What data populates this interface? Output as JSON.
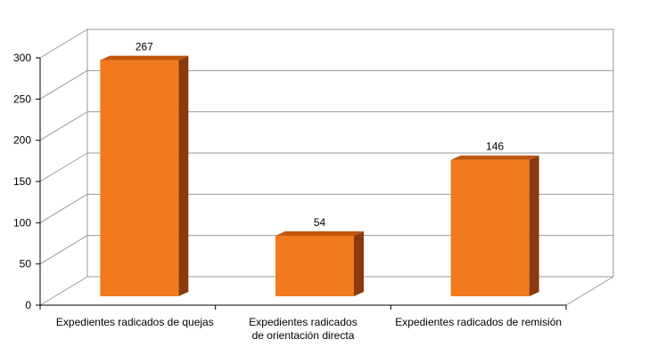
{
  "chart_data": {
    "type": "bar",
    "title": "",
    "xlabel": "",
    "ylabel": "",
    "categories": [
      "Expedientes radicados de quejas",
      "Expedientes radicados de orientación directa",
      "Expedientes radicados de remisión"
    ],
    "category_lines": [
      [
        "Expedientes radicados de quejas"
      ],
      [
        "Expedientes radicados",
        "de orientación directa"
      ],
      [
        "Expedientes radicados de remisión"
      ]
    ],
    "values": [
      267,
      54,
      146
    ],
    "value_labels": [
      "267",
      "54",
      "146"
    ],
    "ylim": [
      0,
      300
    ],
    "yticks": [
      0,
      50,
      100,
      150,
      200,
      250,
      300
    ],
    "ytick_labels": [
      "0",
      "50",
      "100",
      "150",
      "200",
      "250",
      "300"
    ],
    "grid": true,
    "legend": "none",
    "bar_style": "3d",
    "colors": {
      "bar_front": "#F07A1C",
      "bar_side": "#8A3A0C",
      "bar_top": "#C0560F",
      "grid": "#9a9a9a",
      "axis": "#000000"
    }
  }
}
